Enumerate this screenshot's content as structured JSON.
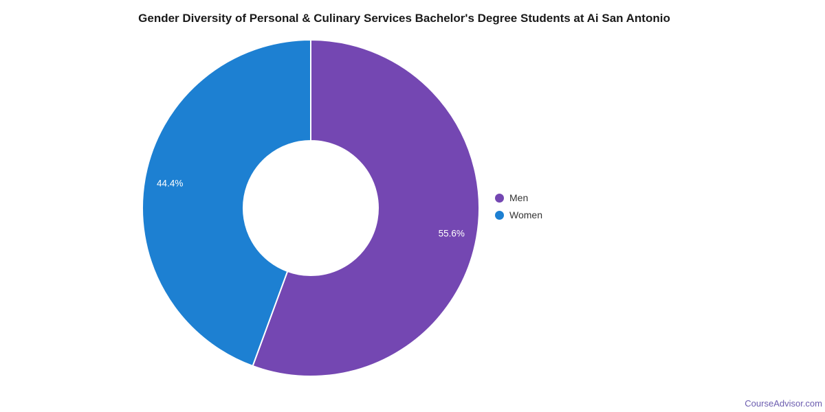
{
  "title": "Gender Diversity of Personal & Culinary Services Bachelor's Degree Students at Ai San Antonio",
  "chart_data": {
    "type": "pie",
    "subtype": "donut",
    "start_angle_deg": 0,
    "direction": "clockwise",
    "inner_radius_ratio": 0.4,
    "legend_position": "right",
    "slices": [
      {
        "label": "Men",
        "value": 55.6,
        "display": "55.6%",
        "color": "#7447b2"
      },
      {
        "label": "Women",
        "value": 44.4,
        "display": "44.4%",
        "color": "#1d80d2"
      }
    ],
    "slice_label_color": "#ffffff",
    "slice_border_color": "#ffffff"
  },
  "watermark": "CourseAdvisor.com"
}
